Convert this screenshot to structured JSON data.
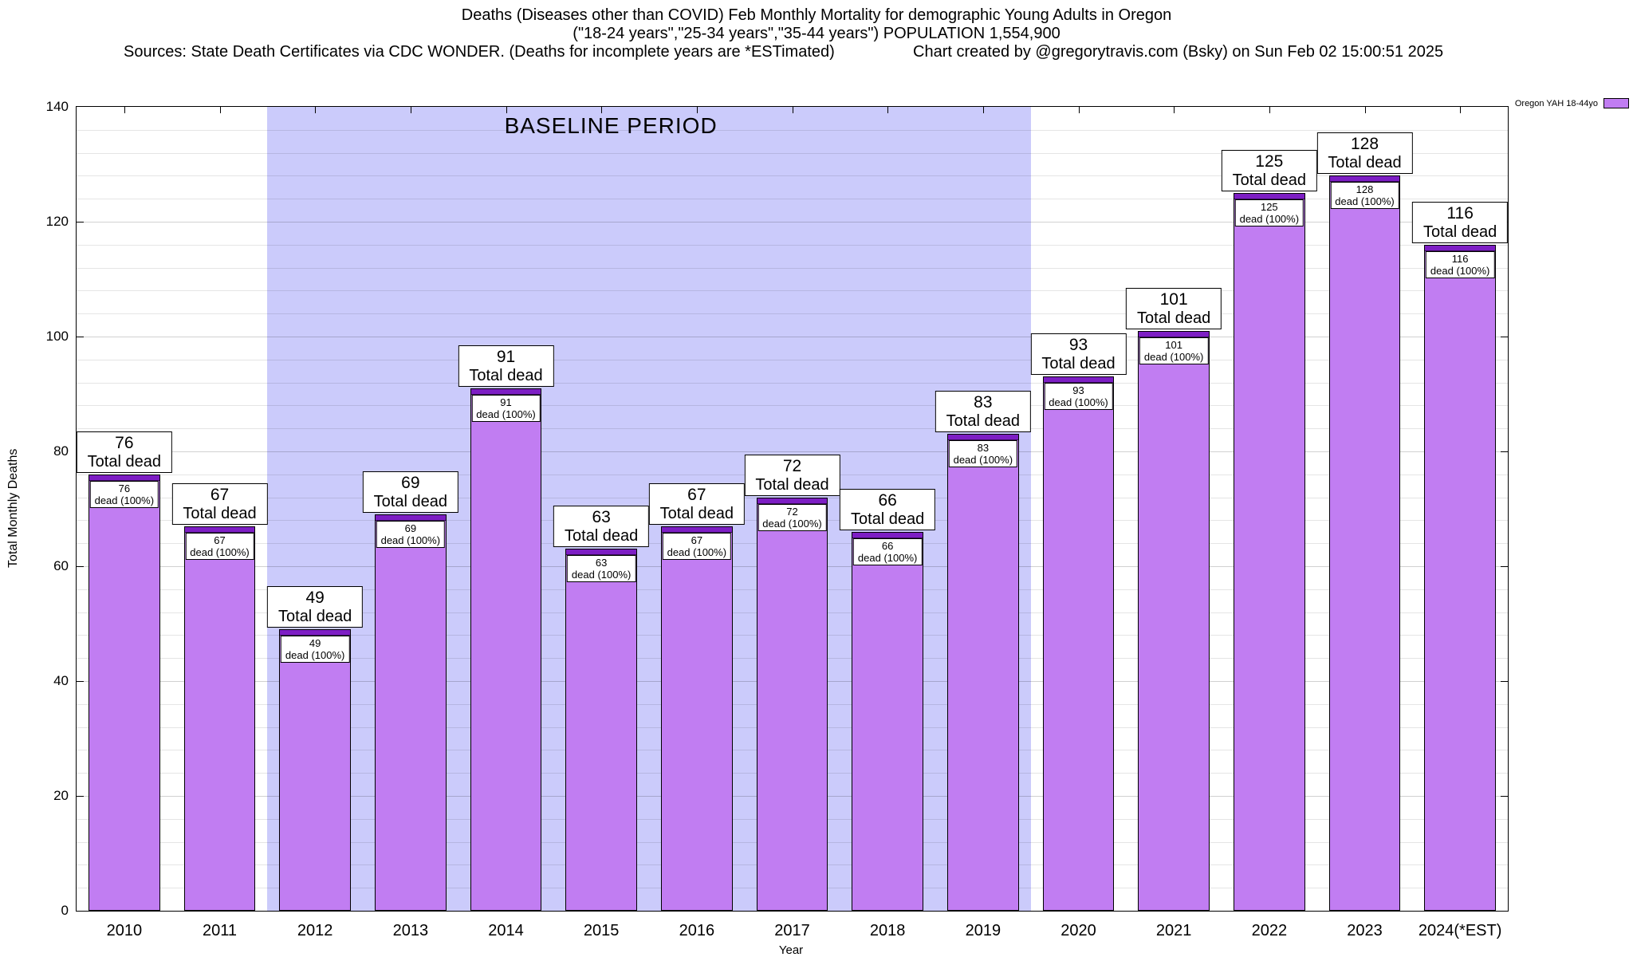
{
  "title": {
    "line1": "Deaths (Diseases other than COVID) Feb Monthly Mortality for demographic Young Adults in Oregon",
    "line2": "(\"18-24 years\",\"25-34 years\",\"35-44 years\") POPULATION 1,554,900",
    "line3_left": "Sources: State Death Certificates via CDC WONDER. (Deaths for incomplete years are *ESTimated)",
    "line3_right": "Chart created by @gregorytravis.com (Bsky) on Sun Feb 02 15:00:51 2025"
  },
  "legend": {
    "label": "Oregon YAH 18-44yo"
  },
  "colors": {
    "bar_fill": "#c17df2",
    "bar_cap": "#7d1ec4",
    "bar_border": "#000000",
    "baseline_bg": "#cbcbfb",
    "grid_minor": "rgba(0,0,0,0.10)",
    "grid_major": "rgba(0,0,0,0.18)"
  },
  "chart_data": {
    "type": "bar",
    "title": "Deaths (Diseases other than COVID) Feb Monthly Mortality for demographic Young Adults in Oregon",
    "subtitle": "(\"18-24 years\",\"25-34 years\",\"35-44 years\") POPULATION 1,554,900",
    "series_name": "Oregon YAH 18-44yo",
    "categories": [
      "2010",
      "2011",
      "2012",
      "2013",
      "2014",
      "2015",
      "2016",
      "2017",
      "2018",
      "2019",
      "2020",
      "2021",
      "2022",
      "2023",
      "2024(*EST)"
    ],
    "values": [
      76,
      67,
      49,
      69,
      91,
      63,
      67,
      72,
      66,
      83,
      93,
      101,
      125,
      128,
      116
    ],
    "xlabel": "Year",
    "ylabel": "Total Monthly Deaths",
    "ylim": [
      0,
      140
    ],
    "yticks": [
      0,
      20,
      40,
      60,
      80,
      100,
      120,
      140
    ],
    "minor_grid_step": 4,
    "grid": "on",
    "legend_position": "top-right-outside",
    "baseline_region": {
      "label": "BASELINE PERIOD",
      "start_category": "2012",
      "end_category": "2019"
    },
    "bar_top_label_suffix": "Total dead",
    "bar_inner_label_suffix": "dead (100%)"
  }
}
